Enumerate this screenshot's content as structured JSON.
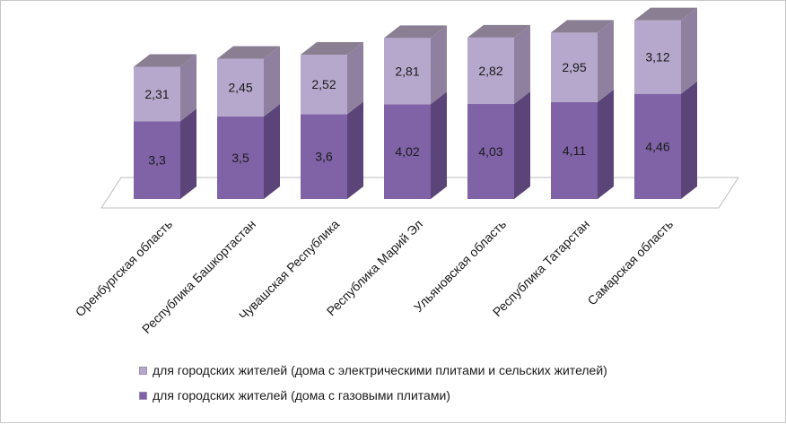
{
  "chart_data": {
    "type": "bar",
    "stacked": true,
    "three_d": true,
    "categories": [
      "Оренбургская  область",
      "Республика Башкортастан",
      "Чувашская  Республика",
      "Республика  Марий Эл",
      "Ульяновская область",
      "Республика Татарстан",
      "Самарская  область"
    ],
    "series": [
      {
        "name": "для городских жителей (дома с газовыми плитами)",
        "values": [
          3.3,
          3.5,
          3.6,
          4.02,
          4.03,
          4.11,
          4.46
        ],
        "labels": [
          "3,3",
          "3,5",
          "3,6",
          "4,02",
          "4,03",
          "4,11",
          "4,46"
        ],
        "color": "#7f63a6",
        "side_color": "#5b4478",
        "top_color": "#9a82bd"
      },
      {
        "name": "для городских жителей (дома с электрическими плитами и сельских жителей)",
        "values": [
          2.31,
          2.45,
          2.52,
          2.81,
          2.82,
          2.95,
          3.12
        ],
        "labels": [
          "2,31",
          "2,45",
          "2,52",
          "2,81",
          "2,82",
          "2,95",
          "3,12"
        ],
        "color": "#b6a8cc",
        "side_color": "#8f809f",
        "top_color": "#8a7f92"
      }
    ],
    "title": "",
    "xlabel": "",
    "ylabel": "",
    "grid": false,
    "legend_position": "bottom"
  }
}
